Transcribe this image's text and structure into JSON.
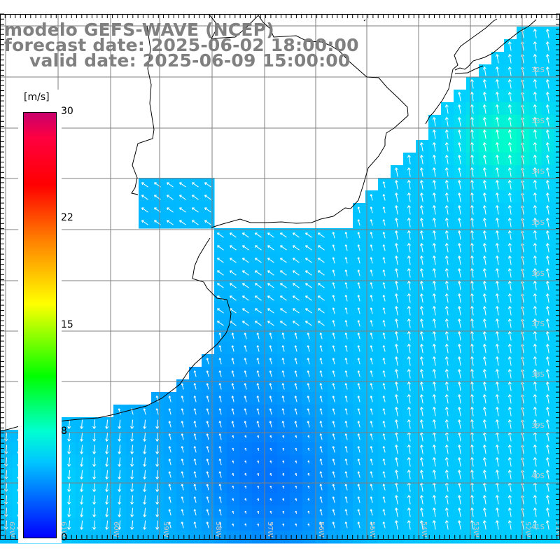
{
  "header": {
    "model": "modelo GEFS-WAVE (NCEP)",
    "forecast": "forecast date: 2025-06-02 18:00:00",
    "valid": "valid date: 2025-06-09 15:00:00"
  },
  "colorbar": {
    "unit": "[m/s]",
    "ticks": [
      {
        "label": "30",
        "value": 30
      },
      {
        "label": "22",
        "value": 22
      },
      {
        "label": "15",
        "value": 15
      },
      {
        "label": "8",
        "value": 8
      },
      {
        "label": "0",
        "value": 0
      }
    ]
  },
  "lat_labels": [
    "32S",
    "33S",
    "34S",
    "35S",
    "36S",
    "37S",
    "38S",
    "39S",
    "40S",
    "41S"
  ],
  "lon_labels": [
    "62W",
    "61W",
    "60W",
    "59W",
    "58W",
    "57W",
    "56W",
    "55W",
    "54W",
    "53W",
    "52W",
    "51W"
  ],
  "colors": {
    "grid": "#7f7f7f",
    "coast": "#000000",
    "land": "#ffffff",
    "arrow": "#ffffff",
    "title": "#808080"
  }
}
